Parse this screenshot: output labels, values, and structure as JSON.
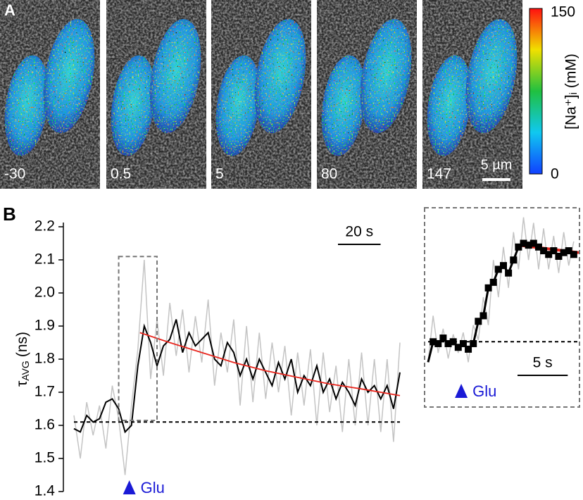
{
  "panel_a": {
    "letter": "A",
    "images": [
      {
        "label": "-30"
      },
      {
        "label": "0.5"
      },
      {
        "label": "5"
      },
      {
        "label": "80"
      },
      {
        "label": "147"
      }
    ],
    "scalebar": {
      "label": "5 µm"
    },
    "colorbar": {
      "min": 0,
      "max": 150,
      "label": "[Na⁺]ᵢ (mM)"
    }
  },
  "panel_b": {
    "letter": "B"
  },
  "chart_data": [
    {
      "type": "line",
      "y_label": {
        "symbol": "τ",
        "subscript": "AVG",
        "unit": "(ns)"
      },
      "xlim": [
        0,
        153
      ],
      "ylim": [
        1.4,
        2.2
      ],
      "yticks": [
        1.4,
        1.5,
        1.6,
        1.7,
        1.8,
        1.9,
        {
          "value": 2,
          "label": "2.0"
        },
        2.1,
        2.2
      ],
      "x": [
        0,
        3,
        6,
        9,
        12,
        15,
        18,
        21,
        24,
        27,
        30,
        33,
        36,
        39,
        42,
        45,
        48,
        51,
        54,
        57,
        60,
        63,
        66,
        69,
        72,
        75,
        78,
        81,
        84,
        87,
        90,
        93,
        96,
        99,
        102,
        105,
        108,
        111,
        114,
        117,
        120,
        123,
        126,
        129,
        132,
        135,
        138,
        141,
        144,
        147,
        150,
        153
      ],
      "series": [
        {
          "name": "raw",
          "color": "#c4c4c4",
          "values": [
            1.63,
            1.5,
            1.67,
            1.57,
            1.66,
            1.53,
            1.72,
            1.62,
            1.45,
            1.66,
            1.83,
            2.1,
            1.74,
            1.92,
            1.75,
            1.97,
            1.81,
            1.95,
            1.76,
            1.93,
            1.79,
            1.98,
            1.72,
            1.88,
            1.76,
            1.92,
            1.66,
            1.9,
            1.67,
            1.88,
            1.68,
            1.85,
            1.7,
            1.84,
            1.63,
            1.82,
            1.66,
            1.83,
            1.6,
            1.82,
            1.64,
            1.78,
            1.58,
            1.8,
            1.6,
            1.82,
            1.6,
            1.8,
            1.58,
            1.8,
            1.55,
            1.85
          ]
        },
        {
          "name": "smoothed",
          "color": "#000000",
          "values": [
            1.59,
            1.58,
            1.63,
            1.61,
            1.62,
            1.67,
            1.68,
            1.65,
            1.58,
            1.6,
            1.78,
            1.9,
            1.85,
            1.78,
            1.84,
            1.86,
            1.92,
            1.82,
            1.88,
            1.84,
            1.86,
            1.88,
            1.8,
            1.78,
            1.85,
            1.82,
            1.75,
            1.8,
            1.74,
            1.8,
            1.76,
            1.72,
            1.79,
            1.74,
            1.8,
            1.7,
            1.75,
            1.72,
            1.78,
            1.7,
            1.74,
            1.68,
            1.73,
            1.7,
            1.66,
            1.74,
            1.7,
            1.72,
            1.68,
            1.72,
            1.65,
            1.76
          ]
        }
      ],
      "fit": {
        "color": "#e8261e",
        "x": [
          31,
          45,
          60,
          75,
          90,
          105,
          120,
          135,
          153
        ],
        "values": [
          1.88,
          1.85,
          1.82,
          1.79,
          1.765,
          1.745,
          1.725,
          1.71,
          1.69
        ]
      },
      "baseline": 1.61,
      "zoom_box": {
        "x": [
          21,
          39
        ],
        "y": [
          1.615,
          2.11
        ]
      },
      "scalebar": {
        "value": 20,
        "label": "20 s"
      },
      "annotation": {
        "text": "Glu",
        "x": 26,
        "color": "#1a1ad6"
      }
    },
    {
      "type": "line",
      "xlim": [
        0,
        15
      ],
      "ylim": [
        1.27,
        2.32
      ],
      "x": [
        0,
        0.5,
        1,
        1.5,
        2,
        2.5,
        3,
        3.5,
        4,
        4.5,
        5,
        5.5,
        6,
        6.5,
        7,
        7.5,
        8,
        8.5,
        9,
        9.5,
        10,
        10.5,
        11,
        11.5,
        12,
        12.5,
        13,
        13.5,
        14,
        14.5
      ],
      "series": [
        {
          "name": "raw",
          "color": "#c4c4c4",
          "values": [
            1.5,
            1.75,
            1.55,
            1.68,
            1.52,
            1.65,
            1.55,
            1.66,
            1.5,
            1.7,
            1.62,
            1.85,
            1.7,
            2.05,
            1.85,
            2.12,
            1.9,
            2.2,
            2.0,
            2.28,
            2.05,
            2.25,
            2.0,
            2.22,
            2.0,
            2.18,
            1.98,
            2.2,
            2.02,
            2.15
          ]
        },
        {
          "name": "averaged",
          "color": "#000000",
          "values": [
            1.5,
            1.61,
            1.6,
            1.63,
            1.6,
            1.61,
            1.58,
            1.6,
            1.57,
            1.6,
            1.72,
            1.75,
            1.9,
            1.93,
            2.0,
            2.02,
            1.98,
            2.05,
            2.12,
            2.14,
            2.13,
            2.14,
            2.12,
            2.1,
            2.08,
            2.1,
            2.07,
            2.09,
            2.1,
            2.08
          ]
        }
      ],
      "fit": {
        "color": "#e8261e",
        "x": [
          9,
          15
        ],
        "values": [
          2.13,
          2.09
        ]
      },
      "baseline": 1.61,
      "scalebar": {
        "value": 5,
        "label": "5 s"
      },
      "annotation": {
        "text": "Glu",
        "x": 3.3,
        "color": "#1a1ad6"
      }
    }
  ]
}
